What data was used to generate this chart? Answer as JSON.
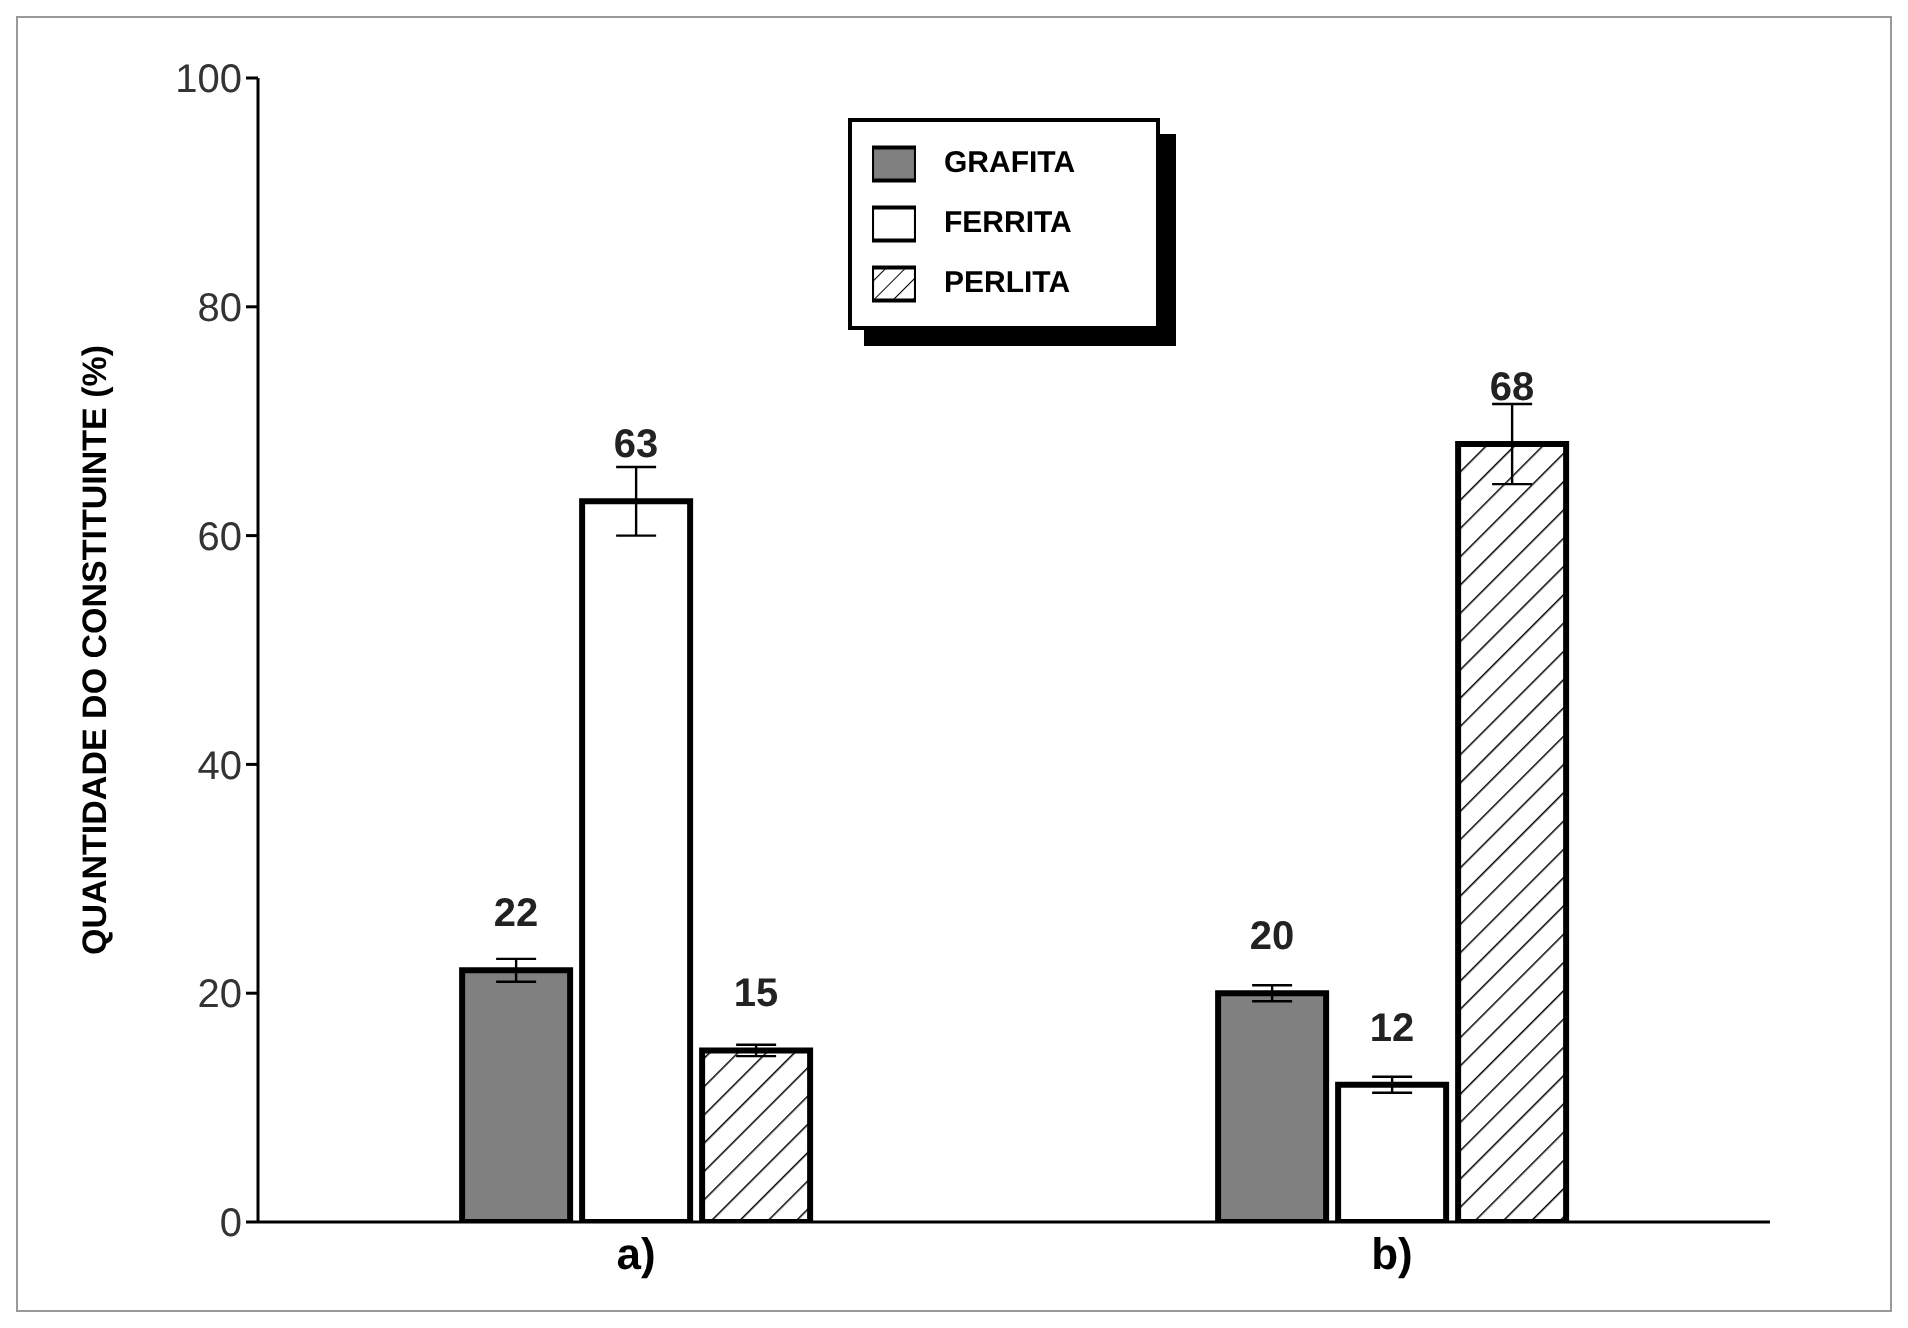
{
  "chart_data": {
    "type": "bar",
    "ylabel": "QUANTIDADE DO CONSTITUINTE (%)",
    "categories": [
      "a)",
      "b)"
    ],
    "series": [
      {
        "name": "GRAFITA",
        "color": "#808080",
        "values": [
          22,
          20
        ],
        "errors": [
          1,
          0.7
        ]
      },
      {
        "name": "FERRITA",
        "color": "#ffffff",
        "values": [
          63,
          12
        ],
        "errors": [
          3,
          0.7
        ]
      },
      {
        "name": "PERLITA",
        "color": "#000000",
        "values": [
          15,
          68
        ],
        "errors": [
          0.5,
          3.5
        ]
      }
    ],
    "ylim": [
      0,
      100
    ],
    "yticks": [
      0,
      20,
      40,
      60,
      80,
      100
    ],
    "grid": false,
    "legend": "top",
    "data_labels": true
  }
}
